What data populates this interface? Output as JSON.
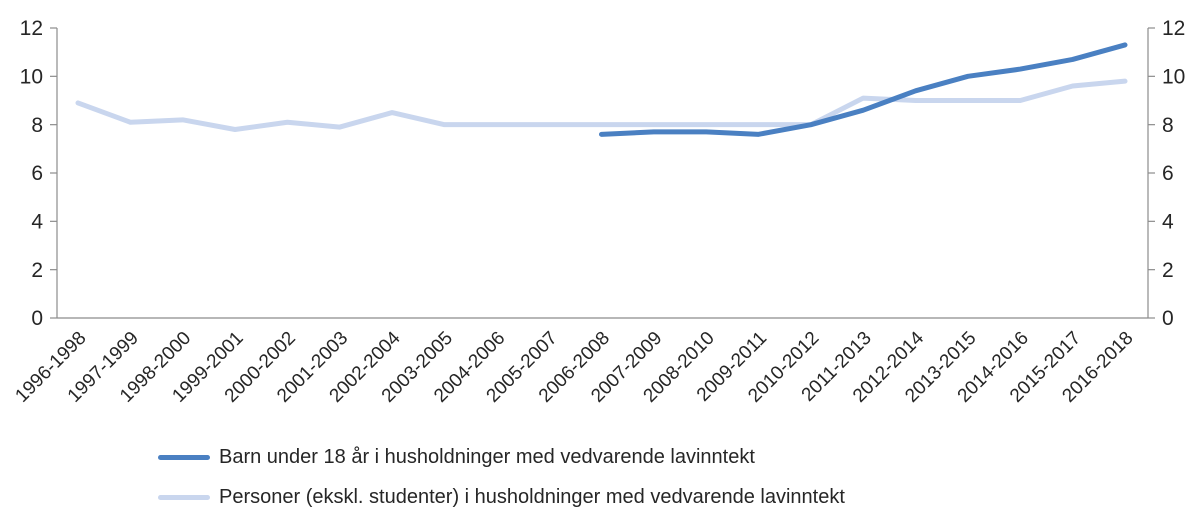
{
  "chart_data": {
    "type": "line",
    "categories": [
      "1996-1998",
      "1997-1999",
      "1998-2000",
      "1999-2001",
      "2000-2002",
      "2001-2003",
      "2002-2004",
      "2003-2005",
      "2004-2006",
      "2005-2007",
      "2006-2008",
      "2007-2009",
      "2008-2010",
      "2009-2011",
      "2010-2012",
      "2011-2013",
      "2012-2014",
      "2013-2015",
      "2014-2016",
      "2015-2017",
      "2016-2018"
    ],
    "series": [
      {
        "name": "Barn under 18 år i husholdninger med vedvarende lavinntekt",
        "color": "#4a80c2",
        "values": [
          null,
          null,
          null,
          null,
          null,
          null,
          null,
          null,
          null,
          null,
          7.6,
          7.7,
          7.7,
          7.6,
          8.0,
          8.6,
          9.4,
          10.0,
          10.3,
          10.7,
          11.3
        ]
      },
      {
        "name": "Personer (ekskl. studenter) i husholdninger med vedvarende lavinntekt",
        "color": "#c9d6ee",
        "values": [
          8.9,
          8.1,
          8.2,
          7.8,
          8.1,
          7.9,
          8.5,
          8.0,
          8.0,
          8.0,
          8.0,
          8.0,
          8.0,
          8.0,
          8.0,
          9.1,
          9.0,
          9.0,
          9.0,
          9.6,
          9.8
        ]
      }
    ],
    "title": "",
    "xlabel": "",
    "ylabel": "",
    "ylim": [
      0,
      12
    ],
    "yticks": [
      0,
      2,
      4,
      6,
      8,
      10,
      12
    ],
    "y_axis_sides": [
      "left",
      "right"
    ],
    "grid": false,
    "legend_position": "bottom-left",
    "axis_color": "#8c8c8c",
    "text_color": "#262626"
  }
}
